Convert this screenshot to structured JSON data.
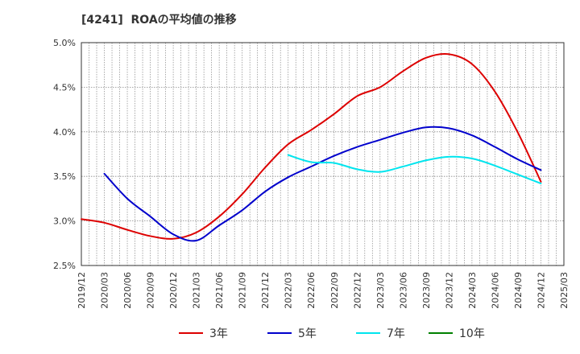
{
  "chart_data": {
    "type": "line",
    "title": "[4241]  ROAの平均値の推移",
    "xlabel": "",
    "ylabel": "",
    "ylim": [
      2.5,
      5.0
    ],
    "y_ticks": [
      "2.5%",
      "3.0%",
      "3.5%",
      "4.0%",
      "4.5%",
      "5.0%"
    ],
    "y_tick_values": [
      2.5,
      3.0,
      3.5,
      4.0,
      4.5,
      5.0
    ],
    "x_ticks": [
      "2019/12",
      "2020/03",
      "2020/06",
      "2020/09",
      "2020/12",
      "2021/03",
      "2021/06",
      "2021/09",
      "2021/12",
      "2022/03",
      "2022/06",
      "2022/09",
      "2022/12",
      "2023/03",
      "2023/06",
      "2023/09",
      "2023/12",
      "2024/03",
      "2024/06",
      "2024/09",
      "2024/12",
      "2025/03"
    ],
    "grid": true,
    "legend_position": "bottom",
    "series": [
      {
        "name": "3年",
        "color": "#dd0000",
        "x": [
          "2019/12",
          "2020/03",
          "2020/06",
          "2020/09",
          "2020/12",
          "2021/03",
          "2021/06",
          "2021/09",
          "2021/12",
          "2022/03",
          "2022/06",
          "2022/09",
          "2022/12",
          "2023/03",
          "2023/06",
          "2023/09",
          "2023/12",
          "2024/03",
          "2024/06",
          "2024/09",
          "2024/12"
        ],
        "values": [
          3.02,
          2.98,
          2.9,
          2.83,
          2.8,
          2.87,
          3.05,
          3.3,
          3.6,
          3.86,
          4.02,
          4.2,
          4.4,
          4.5,
          4.68,
          4.83,
          4.87,
          4.76,
          4.45,
          3.99,
          3.44
        ]
      },
      {
        "name": "5年",
        "color": "#0000cc",
        "x": [
          "2020/03",
          "2020/06",
          "2020/09",
          "2020/12",
          "2021/03",
          "2021/06",
          "2021/09",
          "2021/12",
          "2022/03",
          "2022/06",
          "2022/09",
          "2022/12",
          "2023/03",
          "2023/06",
          "2023/09",
          "2023/12",
          "2024/03",
          "2024/06",
          "2024/09",
          "2024/12"
        ],
        "values": [
          3.53,
          3.25,
          3.05,
          2.85,
          2.78,
          2.95,
          3.12,
          3.33,
          3.49,
          3.61,
          3.73,
          3.83,
          3.91,
          3.99,
          4.05,
          4.04,
          3.96,
          3.83,
          3.69,
          3.57
        ]
      },
      {
        "name": "7年",
        "color": "#00e5ee",
        "x": [
          "2022/03",
          "2022/06",
          "2022/09",
          "2022/12",
          "2023/03",
          "2023/06",
          "2023/09",
          "2023/12",
          "2024/03",
          "2024/06",
          "2024/09",
          "2024/12"
        ],
        "values": [
          3.74,
          3.66,
          3.65,
          3.58,
          3.55,
          3.61,
          3.68,
          3.72,
          3.7,
          3.62,
          3.52,
          3.42
        ]
      },
      {
        "name": "10年",
        "color": "#008000",
        "x": [],
        "values": []
      }
    ]
  }
}
